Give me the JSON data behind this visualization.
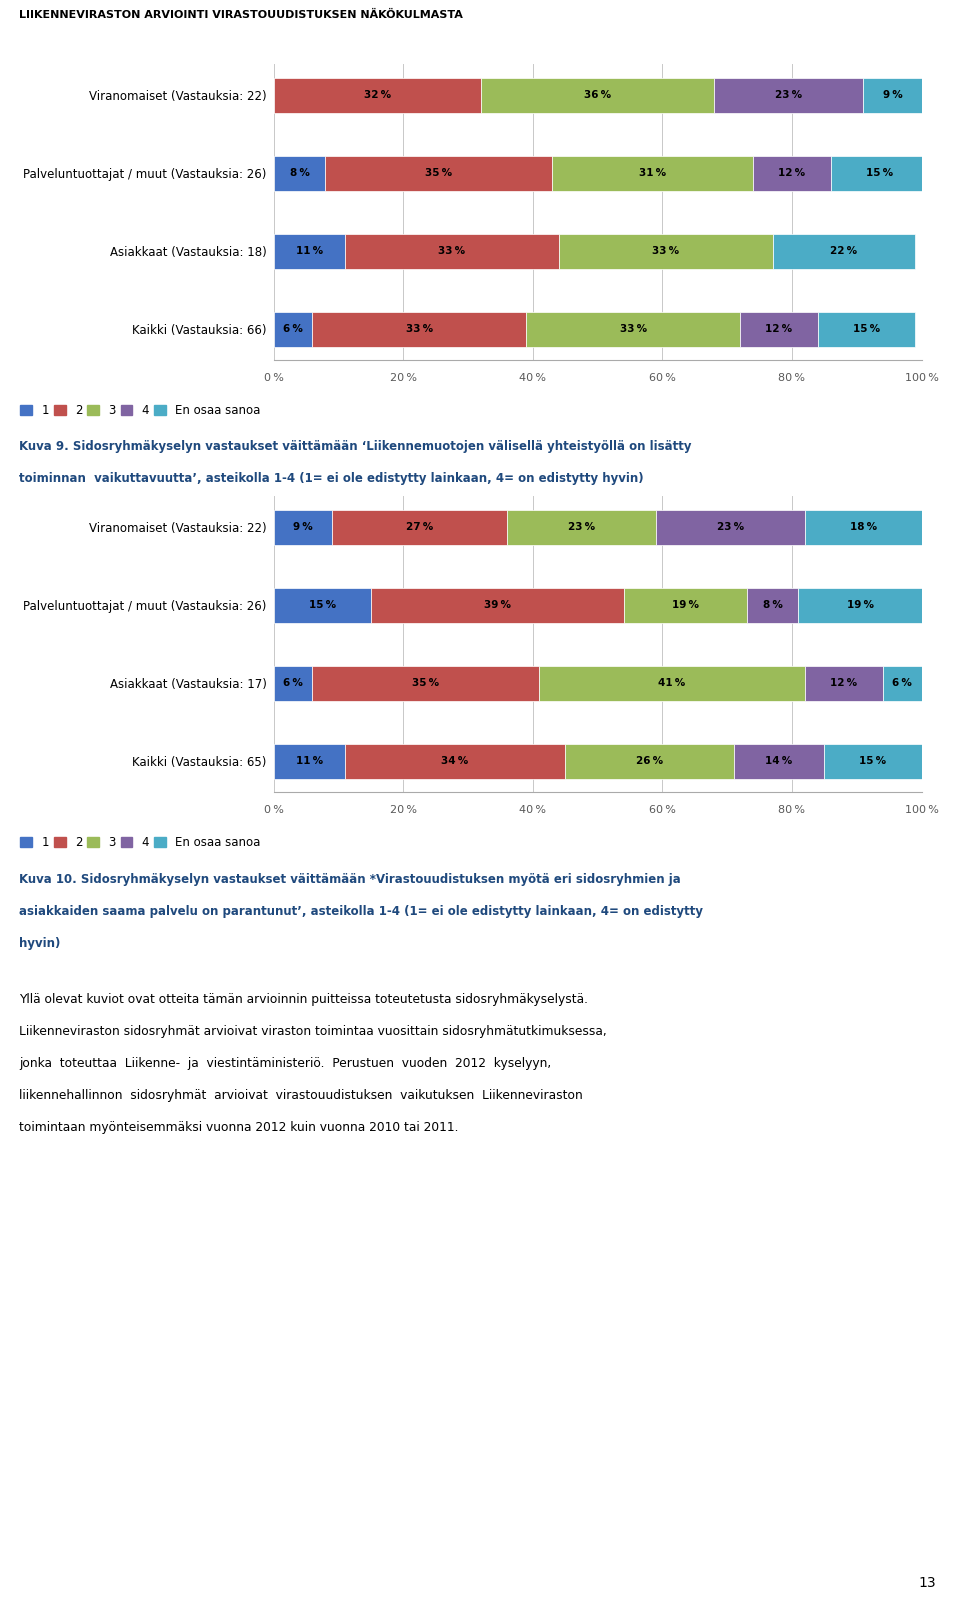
{
  "page_title": "LIIKENNEVIRASTON ARVIOINTI VIRASTOUUDISTUKSEN NÄKÖKULMASTA",
  "chart1_title_line1": "Kuva 9. Sidosryhmäkyselyn vastaukset väittämään ‘Liikennemuotojen välisellä yhteistyöllä on lisätty",
  "chart1_title_line2": "toiminnan  vaikuttavuutta’, asteikolla 1-4 (1= ei ole edistytty lainkaan, 4= on edistytty hyvin)",
  "chart2_title_line1": "Kuva 10. Sidosryhmäkyselyn vastaukset väittämään *Virastouudistuksen myötä eri sidosryhmien ja",
  "chart2_title_line2": "asiakkaiden saama palvelu on parantunut’, asteikolla 1-4 (1= ei ole edistytty lainkaan, 4= on edistytty",
  "chart2_title_line3": "hyvin)",
  "body_text": [
    "Yllä olevat kuviot ovat otteita tämän arvioinnin puitteissa toteutetusta sidosryhmäkyselystä.",
    "Liikenneviraston sidosryhmät arvioivat viraston toimintaa vuosittain sidosryhmätutkimuksessa,",
    "jonka  toteuttaa  Liikenne-  ja  viestintäministeriö.  Perustuen  vuoden  2012  kyselyyn,",
    "liikennehallinnon  sidosryhmät  arvioivat  virastouudistuksen  vaikutuksen  Liikenneviraston",
    "toimintaan myönteisemmäksi vuonna 2012 kuin vuonna 2010 tai 2011."
  ],
  "page_number": "13",
  "colors": [
    "#4472C4",
    "#C0504D",
    "#9BBB59",
    "#8064A2",
    "#4BACC6"
  ],
  "chart1_categories": [
    "Viranomaiset (Vastauksia: 22)",
    "Palveluntuottajat / muut (Vastauksia: 26)",
    "Asiakkaat (Vastauksia: 18)",
    "Kaikki (Vastauksia: 66)"
  ],
  "chart1_data": [
    [
      0,
      32,
      36,
      23,
      9
    ],
    [
      8,
      35,
      31,
      12,
      15
    ],
    [
      11,
      33,
      33,
      0,
      22
    ],
    [
      6,
      33,
      33,
      12,
      15
    ]
  ],
  "chart2_categories": [
    "Viranomaiset (Vastauksia: 22)",
    "Palveluntuottajat / muut (Vastauksia: 26)",
    "Asiakkaat (Vastauksia: 17)",
    "Kaikki (Vastauksia: 65)"
  ],
  "chart2_data": [
    [
      9,
      27,
      23,
      23,
      18
    ],
    [
      15,
      39,
      19,
      8,
      19
    ],
    [
      6,
      35,
      41,
      12,
      6
    ],
    [
      11,
      34,
      26,
      14,
      15
    ]
  ],
  "legend_labels": [
    "1",
    "2",
    "3",
    "4",
    "En osaa sanoa"
  ],
  "title_color": "#1F497D",
  "page_title_color": "#000000",
  "axis_label_color": "#595959"
}
